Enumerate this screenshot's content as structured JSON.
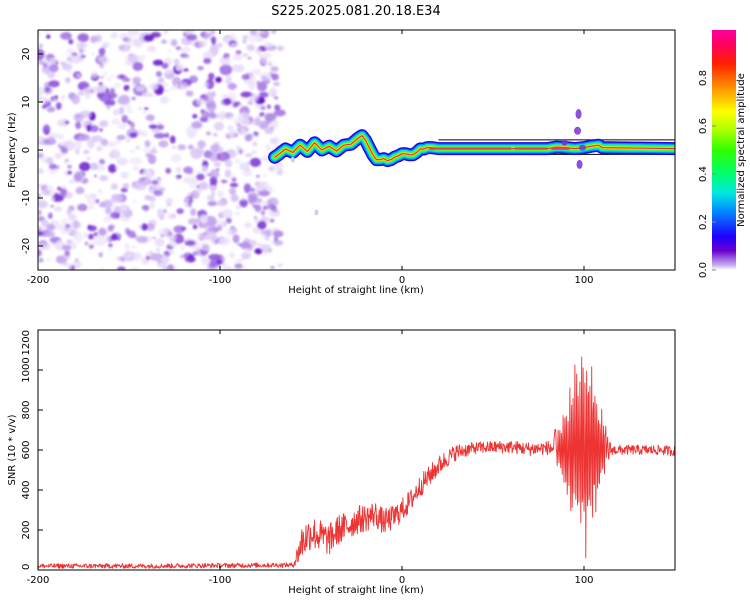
{
  "title": "S225.2025.081.20.18.E34",
  "chart_data": [
    {
      "type": "heatmap",
      "name": "spectrogram",
      "xlabel": "Height of straight line (km)",
      "ylabel": "Frequency (Hz)",
      "xlim": [
        -200,
        150
      ],
      "ylim": [
        -25,
        25
      ],
      "xticks": [
        "-200",
        "-100",
        "0",
        "100"
      ],
      "yticks": [
        "20",
        "10",
        "0",
        "-10",
        "-20"
      ],
      "noise_region_x": [
        -200,
        -70
      ],
      "ridge": {
        "x": [
          -70,
          -68,
          -64,
          -60,
          -56,
          -52,
          -48,
          -44,
          -40,
          -36,
          -32,
          -28,
          -24,
          -22,
          -20,
          -18,
          -16,
          -14,
          -12,
          -10,
          -8,
          -6,
          -4,
          -2,
          0,
          2,
          4,
          6,
          8,
          10,
          12,
          14,
          16,
          20,
          30,
          40,
          60,
          80,
          85,
          90,
          95,
          100,
          104,
          108,
          110,
          150
        ],
        "y": [
          -1.5,
          -1.0,
          0.2,
          -0.5,
          1.0,
          -0.3,
          1.5,
          0.0,
          0.8,
          -0.2,
          1.0,
          1.2,
          2.5,
          3.0,
          2.0,
          0.5,
          -1.0,
          -2.0,
          -2.0,
          -1.8,
          -2.2,
          -2.0,
          -1.5,
          -1.2,
          -0.8,
          -0.8,
          -1.0,
          -1.0,
          -0.5,
          0.2,
          0.2,
          0.5,
          0.5,
          0.3,
          0.3,
          0.3,
          0.3,
          0.3,
          0.6,
          0.5,
          0.3,
          0.5,
          0.8,
          1.0,
          0.5,
          0.3
        ]
      },
      "burst": {
        "x": 97,
        "y_range": [
          -5,
          8
        ]
      },
      "colorbar": {
        "label": "Normalized spectral amplitude",
        "ticks": [
          "0.0",
          "0.2",
          "0.4",
          "0.6",
          "0.8"
        ],
        "range": [
          0,
          1
        ]
      }
    },
    {
      "type": "line",
      "name": "snr",
      "xlabel": "Height of straight line (km)",
      "ylabel": "SNR (10 * v/v)",
      "xlim": [
        -200,
        150
      ],
      "ylim": [
        0,
        1200
      ],
      "xticks": [
        "-200",
        "-100",
        "0",
        "100"
      ],
      "yticks": [
        "1200",
        "1000",
        "800",
        "600",
        "400",
        "200",
        "0"
      ],
      "color": "#ee3333",
      "envelope": {
        "x": [
          -200,
          -140,
          -60,
          -58,
          -55,
          -50,
          -45,
          -40,
          -35,
          -30,
          -25,
          -20,
          -15,
          -10,
          -5,
          0,
          5,
          10,
          15,
          20,
          25,
          30,
          35,
          40,
          50,
          60,
          70,
          80,
          85,
          90,
          95,
          100,
          105,
          110,
          120,
          130,
          140,
          150
        ],
        "y": [
          20,
          20,
          25,
          60,
          140,
          190,
          170,
          150,
          200,
          220,
          250,
          260,
          280,
          240,
          260,
          300,
          350,
          420,
          470,
          520,
          560,
          590,
          600,
          610,
          615,
          615,
          605,
          610,
          610,
          600,
          600,
          600,
          605,
          600,
          600,
          600,
          600,
          595
        ]
      },
      "noise_amp": {
        "x": [
          -200,
          -60,
          -55,
          -40,
          -20,
          0,
          20,
          40,
          80,
          88,
          100,
          110,
          115,
          150
        ],
        "y": [
          12,
          12,
          90,
          80,
          70,
          60,
          50,
          30,
          35,
          150,
          650,
          200,
          25,
          25
        ]
      }
    }
  ]
}
